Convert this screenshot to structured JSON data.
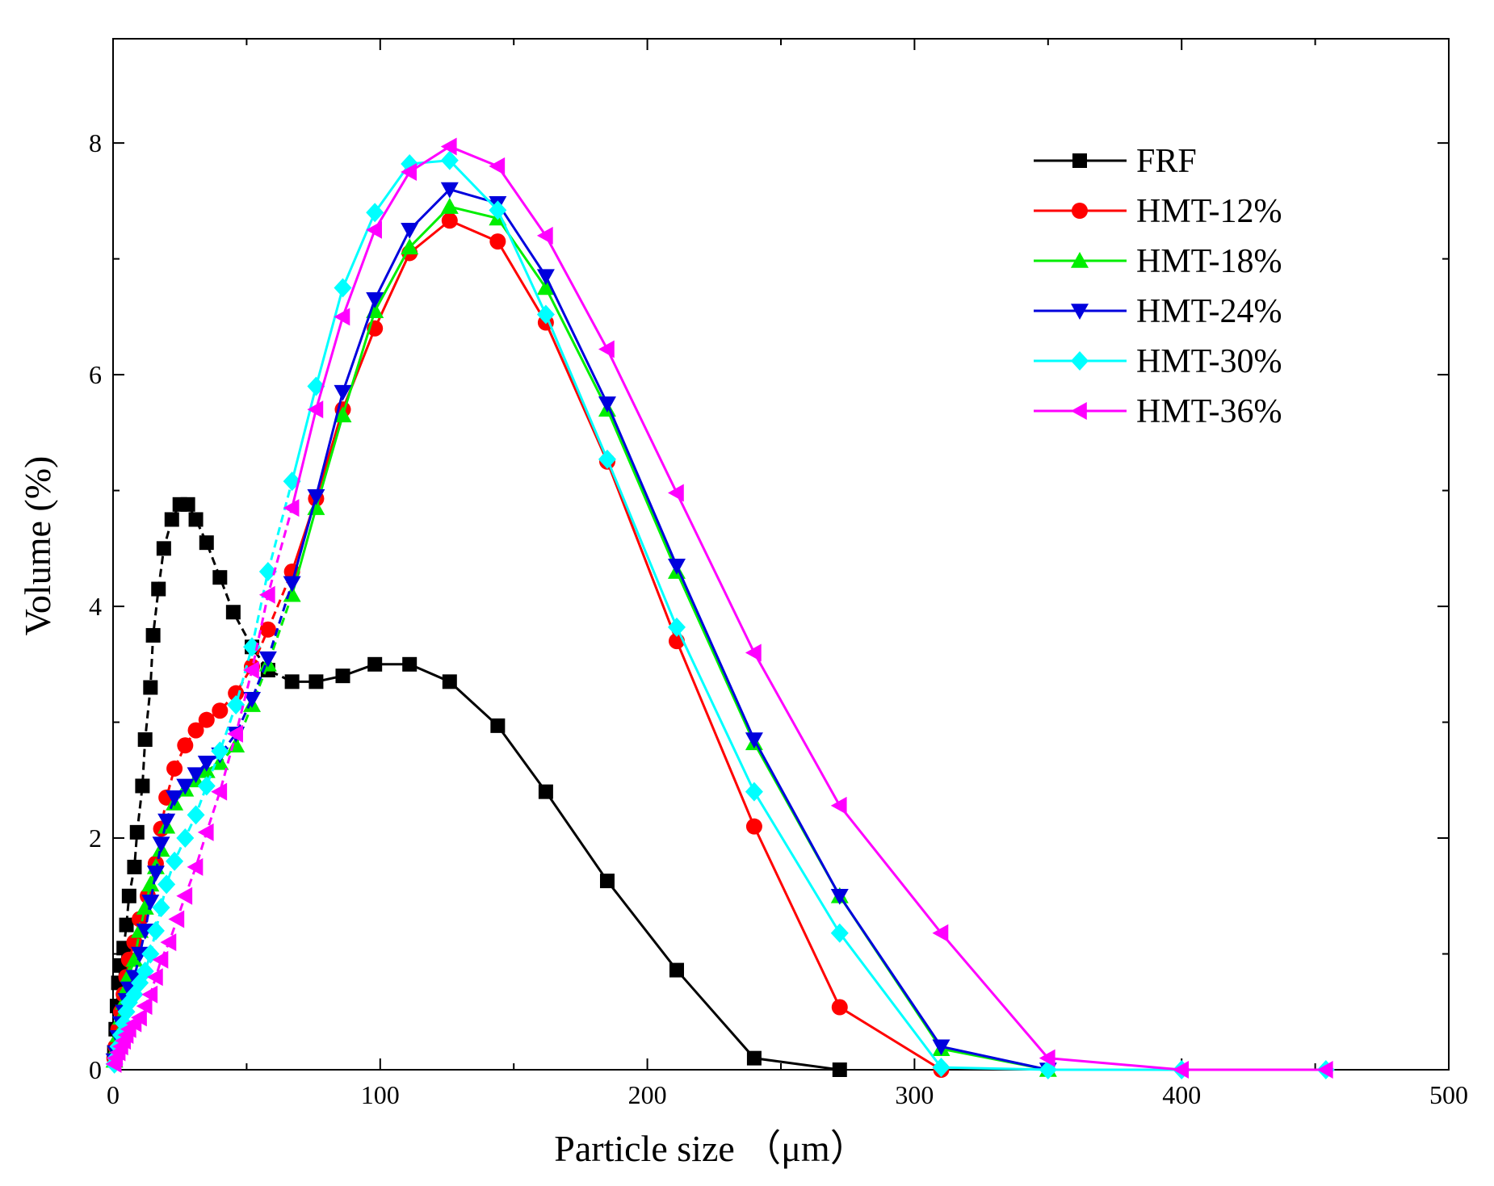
{
  "chart_data": {
    "type": "line",
    "title": "",
    "xlabel": "Particle size （μm）",
    "ylabel": "Volume (%)",
    "xlim": [
      0,
      500
    ],
    "ylim": [
      0,
      8.9
    ],
    "xticks": [
      0,
      100,
      200,
      300,
      400,
      500
    ],
    "yticks": [
      0,
      2,
      4,
      6,
      8
    ],
    "grid": false,
    "legend_position": "top-right",
    "series": [
      {
        "name": "FRF",
        "color": "#000000",
        "marker": "square",
        "dash": "dashed-then-solid",
        "x": [
          0.5,
          1,
          1.5,
          2,
          3,
          4,
          5,
          6,
          8,
          9,
          11,
          12,
          14,
          15,
          17,
          19,
          22,
          25,
          28,
          31,
          35,
          40,
          45,
          52,
          58,
          67,
          76,
          86,
          98,
          111,
          126,
          144,
          162,
          185,
          211,
          240,
          272
        ],
        "y": [
          0.15,
          0.35,
          0.55,
          0.75,
          0.9,
          1.05,
          1.25,
          1.5,
          1.75,
          2.05,
          2.45,
          2.85,
          3.3,
          3.75,
          4.15,
          4.5,
          4.75,
          4.88,
          4.88,
          4.75,
          4.55,
          4.25,
          3.95,
          3.65,
          3.45,
          3.35,
          3.35,
          3.4,
          3.5,
          3.5,
          3.35,
          2.97,
          2.4,
          1.63,
          0.86,
          0.1,
          0.0
        ]
      },
      {
        "name": "HMT-12%",
        "color": "#ff0000",
        "marker": "circle",
        "dash": "dashed-then-solid",
        "x": [
          0.5,
          1,
          2,
          3,
          4,
          5,
          6,
          8,
          10,
          13,
          16,
          18,
          20,
          23,
          27,
          31,
          35,
          40,
          46,
          52,
          58,
          67,
          76,
          86,
          98,
          111,
          126,
          144,
          162,
          185,
          211,
          240,
          272,
          310
        ],
        "y": [
          0.1,
          0.2,
          0.35,
          0.5,
          0.65,
          0.8,
          0.95,
          1.1,
          1.3,
          1.5,
          1.78,
          2.08,
          2.35,
          2.6,
          2.8,
          2.93,
          3.02,
          3.1,
          3.25,
          3.48,
          3.8,
          4.3,
          4.93,
          5.7,
          6.4,
          7.05,
          7.33,
          7.15,
          6.45,
          5.25,
          3.7,
          2.1,
          0.54,
          0.0
        ]
      },
      {
        "name": "HMT-18%",
        "color": "#00ee00",
        "marker": "triangle-up",
        "dash": "dashed-then-solid",
        "x": [
          0.5,
          1,
          2,
          3,
          4,
          5,
          6,
          8,
          10,
          12,
          14,
          16,
          18,
          20,
          23,
          27,
          31,
          35,
          40,
          46,
          52,
          58,
          67,
          76,
          86,
          98,
          111,
          126,
          144,
          162,
          185,
          211,
          240,
          272,
          310,
          350
        ],
        "y": [
          0.08,
          0.18,
          0.3,
          0.45,
          0.58,
          0.7,
          0.82,
          0.95,
          1.2,
          1.4,
          1.6,
          1.75,
          1.9,
          2.1,
          2.3,
          2.42,
          2.5,
          2.58,
          2.65,
          2.8,
          3.15,
          3.5,
          4.1,
          4.85,
          5.65,
          6.55,
          7.1,
          7.45,
          7.35,
          6.75,
          5.7,
          4.3,
          2.82,
          1.5,
          0.18,
          0.0
        ]
      },
      {
        "name": "HMT-24%",
        "color": "#0000dd",
        "marker": "triangle-down",
        "dash": "dashed-then-solid",
        "x": [
          0.5,
          1,
          2,
          3,
          4,
          5,
          6,
          8,
          10,
          12,
          14,
          16,
          18,
          20,
          23,
          27,
          31,
          35,
          40,
          46,
          52,
          58,
          67,
          76,
          86,
          98,
          111,
          126,
          144,
          162,
          185,
          211,
          240,
          272,
          310,
          350
        ],
        "y": [
          0.08,
          0.15,
          0.28,
          0.4,
          0.5,
          0.6,
          0.7,
          0.8,
          1.0,
          1.2,
          1.45,
          1.7,
          1.95,
          2.15,
          2.35,
          2.45,
          2.55,
          2.65,
          2.72,
          2.9,
          3.2,
          3.55,
          4.2,
          4.95,
          5.85,
          6.65,
          7.25,
          7.6,
          7.48,
          6.85,
          5.75,
          4.35,
          2.85,
          1.5,
          0.2,
          0.0
        ]
      },
      {
        "name": "HMT-30%",
        "color": "#00ffff",
        "marker": "diamond",
        "dash": "dashed-then-solid",
        "x": [
          0.5,
          1,
          2,
          3,
          4,
          5,
          6,
          8,
          10,
          12,
          14,
          16,
          18,
          20,
          23,
          27,
          31,
          35,
          40,
          46,
          52,
          58,
          67,
          76,
          86,
          98,
          111,
          126,
          144,
          162,
          185,
          211,
          240,
          272,
          310,
          350,
          400,
          454
        ],
        "y": [
          0.05,
          0.1,
          0.2,
          0.3,
          0.4,
          0.5,
          0.58,
          0.65,
          0.75,
          0.85,
          1.0,
          1.2,
          1.4,
          1.6,
          1.8,
          2.0,
          2.2,
          2.45,
          2.75,
          3.15,
          3.65,
          4.3,
          5.08,
          5.9,
          6.75,
          7.4,
          7.82,
          7.85,
          7.42,
          6.52,
          5.27,
          3.82,
          2.4,
          1.18,
          0.02,
          0.0,
          0.0,
          0.0
        ]
      },
      {
        "name": "HMT-36%",
        "color": "#ff00ff",
        "marker": "triangle-left",
        "dash": "dashed-then-solid",
        "x": [
          0.5,
          1,
          2,
          3,
          4,
          5,
          6,
          8,
          10,
          12,
          14,
          16,
          18,
          21,
          24,
          27,
          31,
          35,
          40,
          46,
          52,
          58,
          67,
          76,
          86,
          98,
          111,
          126,
          144,
          162,
          185,
          211,
          240,
          272,
          310,
          350,
          400,
          454
        ],
        "y": [
          0.05,
          0.1,
          0.15,
          0.2,
          0.25,
          0.3,
          0.35,
          0.4,
          0.45,
          0.55,
          0.65,
          0.8,
          0.95,
          1.1,
          1.3,
          1.5,
          1.75,
          2.05,
          2.4,
          2.9,
          3.45,
          4.1,
          4.85,
          5.7,
          6.5,
          7.25,
          7.75,
          7.97,
          7.8,
          7.2,
          6.22,
          4.98,
          3.6,
          2.28,
          1.18,
          0.1,
          0.0,
          0.0
        ]
      }
    ]
  }
}
